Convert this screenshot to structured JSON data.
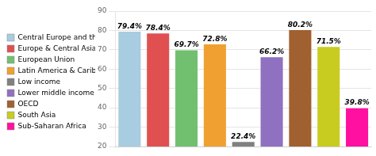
{
  "chart_data": {
    "type": "bar",
    "categories": [
      "Central Europe and the Baltics",
      "Europe & Central Asia",
      "European Union",
      "Latin America & Caribbean",
      "Low income",
      "Lower middle income",
      "OECD",
      "South Asia",
      "Sub-Saharan Africa"
    ],
    "values": [
      79.4,
      78.4,
      69.7,
      72.8,
      22.4,
      66.2,
      80.2,
      71.5,
      39.8
    ],
    "value_labels": [
      "79.4%",
      "78.4%",
      "69.7%",
      "72.8%",
      "22.4%",
      "66.2%",
      "80.2%",
      "71.5%",
      "39.8%"
    ],
    "data_labels": true,
    "colors": [
      "#a8cce0",
      "#e05050",
      "#70c070",
      "#f0a030",
      "#808080",
      "#9070c0",
      "#a06030",
      "#c8cc20",
      "#ff10a0"
    ],
    "ylim": [
      20,
      90
    ],
    "yticks": [
      20,
      30,
      40,
      50,
      60,
      70,
      80,
      90
    ],
    "grid": true,
    "legend": "left",
    "tick_labels": "y"
  }
}
